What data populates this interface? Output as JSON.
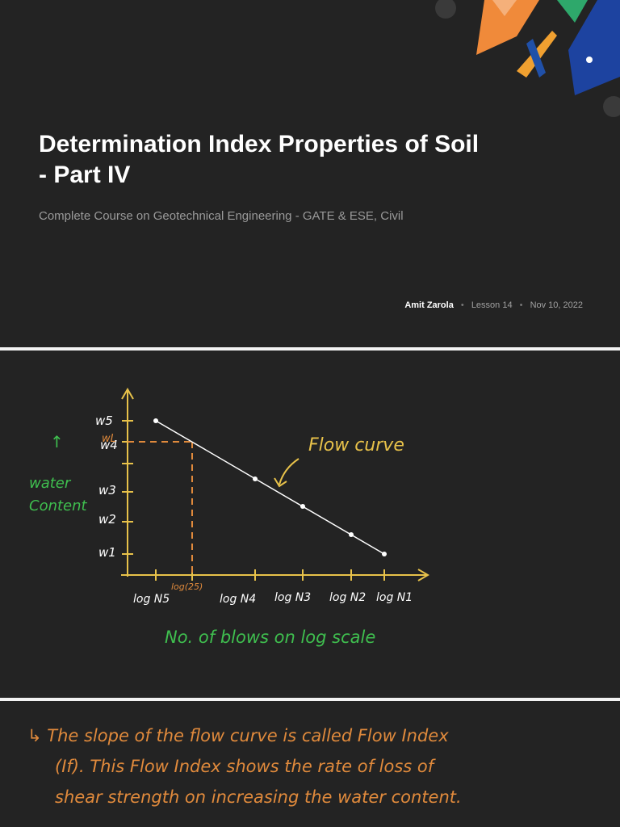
{
  "title_slide": {
    "title": "Determination Index Properties of Soil - Part IV",
    "subtitle": "Complete Course on Geotechnical Engineering - GATE & ESE, Civil",
    "author": "Amit Zarola",
    "lesson": "Lesson 14",
    "date": "Nov 10, 2022",
    "colors": {
      "background": "#232323",
      "title": "#ffffff",
      "subtitle": "#9a9a9a"
    }
  },
  "graph_slide": {
    "y_axis_label": [
      "↑",
      "water",
      "Content"
    ],
    "x_axis_label": "No. of blows on log scale",
    "curve_label": "Flow curve",
    "y_ticks": [
      "w5",
      "wL",
      "w4",
      "w3",
      "w2",
      "w1"
    ],
    "x_ticks": [
      "log N5",
      "log(25)",
      "log N4",
      "log N3",
      "log N2",
      "log N1"
    ],
    "colors": {
      "axes": "#e8c24a",
      "curve": "#ffffff",
      "guide": "#e08a3c",
      "green": "#3fbf4f"
    }
  },
  "chart_data": {
    "type": "line",
    "title": "",
    "xlabel": "No. of blows on log scale",
    "ylabel": "water Content",
    "x": [
      "log N5",
      "log N4",
      "log N3",
      "log N2",
      "log N1"
    ],
    "series": [
      {
        "values": [
          "w5",
          "w4",
          "w3",
          "w2",
          "w1"
        ]
      }
    ],
    "annotations": [
      {
        "text": "Flow curve"
      },
      {
        "text": "wL at log(25)"
      }
    ],
    "grid": false
  },
  "notes_slide": {
    "lines": [
      "↳ The slope of the flow curve is called Flow Index",
      "(If). This Flow Index shows the rate of loss of",
      "shear strength on increasing the water content."
    ],
    "color": "#e08a3c"
  }
}
